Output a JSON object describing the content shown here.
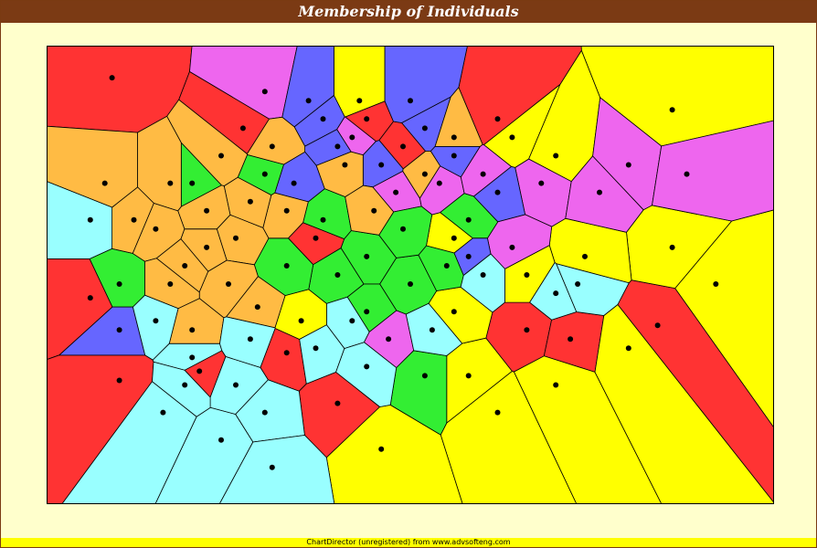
{
  "title": "Membership of Individuals",
  "footer": "ChartDirector (unregistered) from www.advsofteng.com",
  "colors": {
    "title_bg": "#7b3a14",
    "background": "#ffffcc",
    "footer_bg": "#ffff00",
    "palette": [
      "#ff3333",
      "#ffff00",
      "#ee66ee",
      "#33ee33",
      "#6666ff",
      "#ffbb44",
      "#99ffff"
    ]
  },
  "chart_data": {
    "type": "scatter",
    "title": "Membership of Individuals",
    "xlabel": "",
    "ylabel": "",
    "grid": false,
    "axes_visible": false,
    "legend": "none",
    "cell_style": "voronoi regions colored by group, black points at individuals",
    "groups": [
      {
        "color": "#ff3333",
        "points": [
          [
            0.06,
            0.55
          ],
          [
            0.1,
            0.73
          ],
          [
            0.21,
            0.71
          ],
          [
            0.33,
            0.67
          ],
          [
            0.4,
            0.78
          ],
          [
            0.44,
            0.16
          ],
          [
            0.62,
            0.16
          ],
          [
            0.66,
            0.62
          ],
          [
            0.72,
            0.64
          ],
          [
            0.84,
            0.61
          ],
          [
            0.09,
            0.07
          ],
          [
            0.27,
            0.18
          ],
          [
            0.49,
            0.22
          ],
          [
            0.37,
            0.42
          ]
        ]
      },
      {
        "color": "#ffff00",
        "points": [
          [
            0.56,
            0.58
          ],
          [
            0.62,
            0.8
          ],
          [
            0.7,
            0.74
          ],
          [
            0.8,
            0.66
          ],
          [
            0.92,
            0.52
          ],
          [
            0.86,
            0.44
          ],
          [
            0.74,
            0.46
          ],
          [
            0.66,
            0.5
          ],
          [
            0.58,
            0.72
          ],
          [
            0.46,
            0.88
          ],
          [
            0.43,
            0.12
          ],
          [
            0.64,
            0.2
          ],
          [
            0.7,
            0.24
          ],
          [
            0.86,
            0.14
          ],
          [
            0.35,
            0.6
          ],
          [
            0.56,
            0.42
          ]
        ]
      },
      {
        "color": "#ee66ee",
        "points": [
          [
            0.3,
            0.1
          ],
          [
            0.48,
            0.32
          ],
          [
            0.54,
            0.3
          ],
          [
            0.6,
            0.28
          ],
          [
            0.68,
            0.3
          ],
          [
            0.76,
            0.32
          ],
          [
            0.8,
            0.26
          ],
          [
            0.88,
            0.28
          ],
          [
            0.47,
            0.64
          ],
          [
            0.42,
            0.2
          ],
          [
            0.64,
            0.44
          ]
        ]
      },
      {
        "color": "#33ee33",
        "points": [
          [
            0.3,
            0.28
          ],
          [
            0.38,
            0.38
          ],
          [
            0.44,
            0.46
          ],
          [
            0.5,
            0.52
          ],
          [
            0.55,
            0.48
          ],
          [
            0.44,
            0.58
          ],
          [
            0.52,
            0.72
          ],
          [
            0.4,
            0.5
          ],
          [
            0.49,
            0.4
          ],
          [
            0.58,
            0.38
          ],
          [
            0.33,
            0.48
          ],
          [
            0.2,
            0.3
          ],
          [
            0.1,
            0.52
          ]
        ]
      },
      {
        "color": "#6666ff",
        "points": [
          [
            0.36,
            0.12
          ],
          [
            0.4,
            0.22
          ],
          [
            0.52,
            0.18
          ],
          [
            0.56,
            0.24
          ],
          [
            0.46,
            0.26
          ],
          [
            0.34,
            0.3
          ],
          [
            0.58,
            0.46
          ],
          [
            0.1,
            0.62
          ],
          [
            0.38,
            0.16
          ],
          [
            0.5,
            0.12
          ],
          [
            0.62,
            0.32
          ]
        ]
      },
      {
        "color": "#ffbb44",
        "points": [
          [
            0.17,
            0.3
          ],
          [
            0.22,
            0.36
          ],
          [
            0.26,
            0.42
          ],
          [
            0.15,
            0.4
          ],
          [
            0.19,
            0.48
          ],
          [
            0.25,
            0.52
          ],
          [
            0.29,
            0.57
          ],
          [
            0.33,
            0.36
          ],
          [
            0.12,
            0.38
          ],
          [
            0.24,
            0.24
          ],
          [
            0.31,
            0.22
          ],
          [
            0.08,
            0.3
          ],
          [
            0.2,
            0.62
          ],
          [
            0.45,
            0.36
          ],
          [
            0.52,
            0.28
          ],
          [
            0.41,
            0.26
          ],
          [
            0.22,
            0.44
          ],
          [
            0.28,
            0.34
          ],
          [
            0.17,
            0.52
          ],
          [
            0.56,
            0.2
          ]
        ]
      },
      {
        "color": "#99ffff",
        "points": [
          [
            0.15,
            0.6
          ],
          [
            0.2,
            0.68
          ],
          [
            0.26,
            0.74
          ],
          [
            0.3,
            0.8
          ],
          [
            0.24,
            0.86
          ],
          [
            0.37,
            0.66
          ],
          [
            0.44,
            0.7
          ],
          [
            0.53,
            0.62
          ],
          [
            0.6,
            0.5
          ],
          [
            0.7,
            0.54
          ],
          [
            0.73,
            0.52
          ],
          [
            0.16,
            0.8
          ],
          [
            0.31,
            0.92
          ],
          [
            0.06,
            0.38
          ],
          [
            0.28,
            0.64
          ],
          [
            0.42,
            0.6
          ],
          [
            0.19,
            0.74
          ]
        ]
      }
    ]
  }
}
